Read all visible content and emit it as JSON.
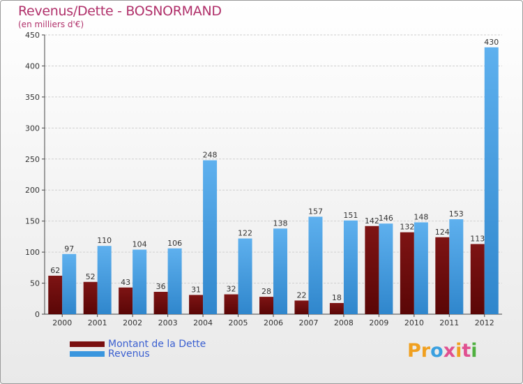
{
  "title": "Revenus/Dette - BOSNORMAND",
  "subtitle": "(en milliers d'€)",
  "logo": "Proxiti",
  "colors": {
    "debt": "#7a1010",
    "revenue": "#3a96de",
    "title": "#b0306a",
    "legend_text": "#3a5fd0"
  },
  "legend": [
    {
      "label": "Montant de la Dette",
      "color": "#7a1010"
    },
    {
      "label": "Revenus",
      "color": "#3a96de"
    }
  ],
  "chart_data": {
    "type": "bar",
    "title": "Revenus/Dette - BOSNORMAND",
    "ylabel": "(en milliers d'€)",
    "xlabel": "",
    "ylim": [
      0,
      450
    ],
    "yticks": [
      0,
      50,
      100,
      150,
      200,
      250,
      300,
      350,
      400,
      450
    ],
    "categories": [
      "2000",
      "2001",
      "2002",
      "2003",
      "2004",
      "2005",
      "2006",
      "2007",
      "2008",
      "2009",
      "2010",
      "2011",
      "2012"
    ],
    "series": [
      {
        "name": "Montant de la Dette",
        "values": [
          62,
          52,
          43,
          36,
          31,
          32,
          28,
          22,
          18,
          142,
          132,
          124,
          113
        ]
      },
      {
        "name": "Revenus",
        "values": [
          97,
          110,
          104,
          106,
          248,
          122,
          138,
          157,
          151,
          146,
          148,
          153,
          430
        ]
      }
    ],
    "grid": true,
    "legend_position": "bottom-left"
  }
}
